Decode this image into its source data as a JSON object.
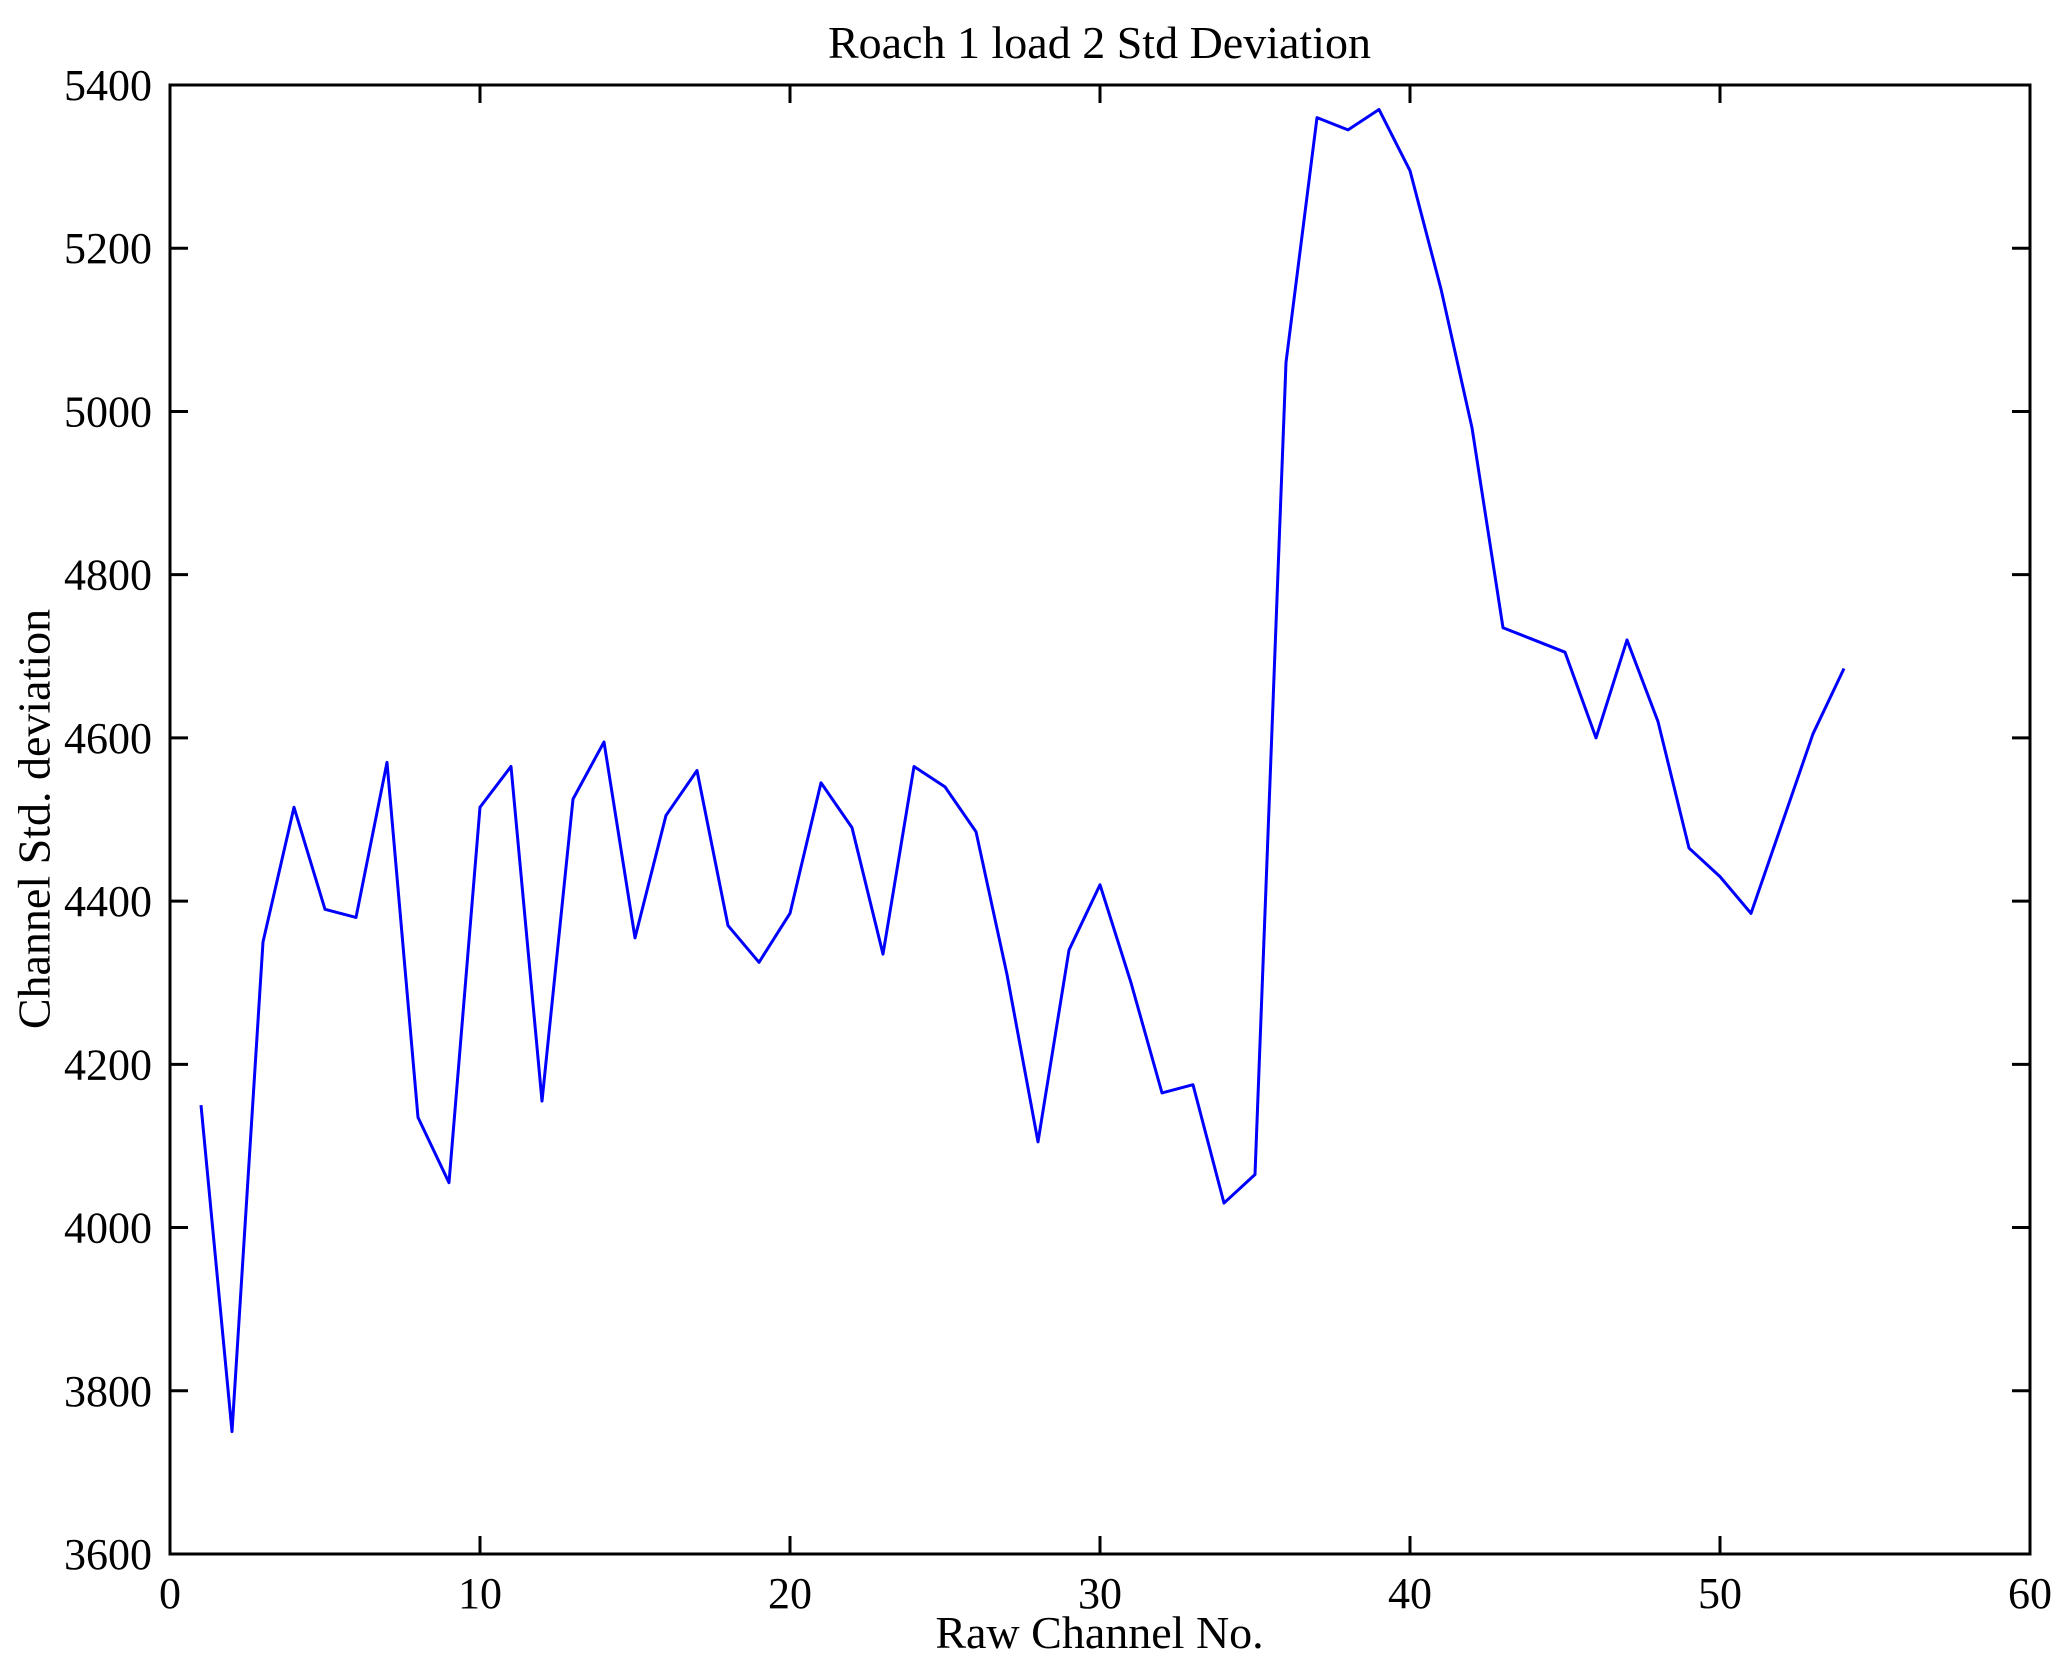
{
  "figure": {
    "title": "Roach 1 load 2 Std Deviation",
    "background_color": "#ffffff",
    "axis_color": "#000000"
  },
  "chart_data": {
    "type": "line",
    "title": "Roach 1 load 2 Std Deviation",
    "xlabel": "Raw Channel No.",
    "ylabel": "Channel Std. deviation",
    "xlim": [
      0,
      60
    ],
    "ylim": [
      3600,
      5400
    ],
    "xticks": [
      0,
      10,
      20,
      30,
      40,
      50,
      60
    ],
    "yticks": [
      3600,
      3800,
      4000,
      4200,
      4400,
      4600,
      4800,
      5000,
      5200,
      5400
    ],
    "grid": false,
    "legend": null,
    "line_color": "#0000ff",
    "line_width": 3,
    "x": [
      1,
      2,
      3,
      4,
      5,
      6,
      7,
      8,
      9,
      10,
      11,
      12,
      13,
      14,
      15,
      16,
      17,
      18,
      19,
      20,
      21,
      22,
      23,
      24,
      25,
      26,
      27,
      28,
      29,
      30,
      31,
      32,
      33,
      34,
      35,
      36,
      37,
      38,
      39,
      40,
      41,
      42,
      43,
      44,
      45,
      46,
      47,
      48,
      49,
      50,
      51,
      52,
      53,
      54
    ],
    "series": [
      {
        "name": "Channel Std. deviation",
        "values": [
          4150,
          3750,
          4350,
          4515,
          4390,
          4380,
          4570,
          4135,
          4055,
          4515,
          4565,
          4155,
          4525,
          4595,
          4355,
          4505,
          4560,
          4370,
          4325,
          4385,
          4545,
          4490,
          4335,
          4565,
          4540,
          4485,
          4310,
          4105,
          4340,
          4420,
          4300,
          4165,
          4175,
          4030,
          4065,
          5060,
          5360,
          5345,
          5370,
          5295,
          5150,
          4980,
          4735,
          4720,
          4705,
          4600,
          4720,
          4620,
          4465,
          4430,
          4385,
          4495,
          4605,
          4685
        ]
      }
    ]
  }
}
